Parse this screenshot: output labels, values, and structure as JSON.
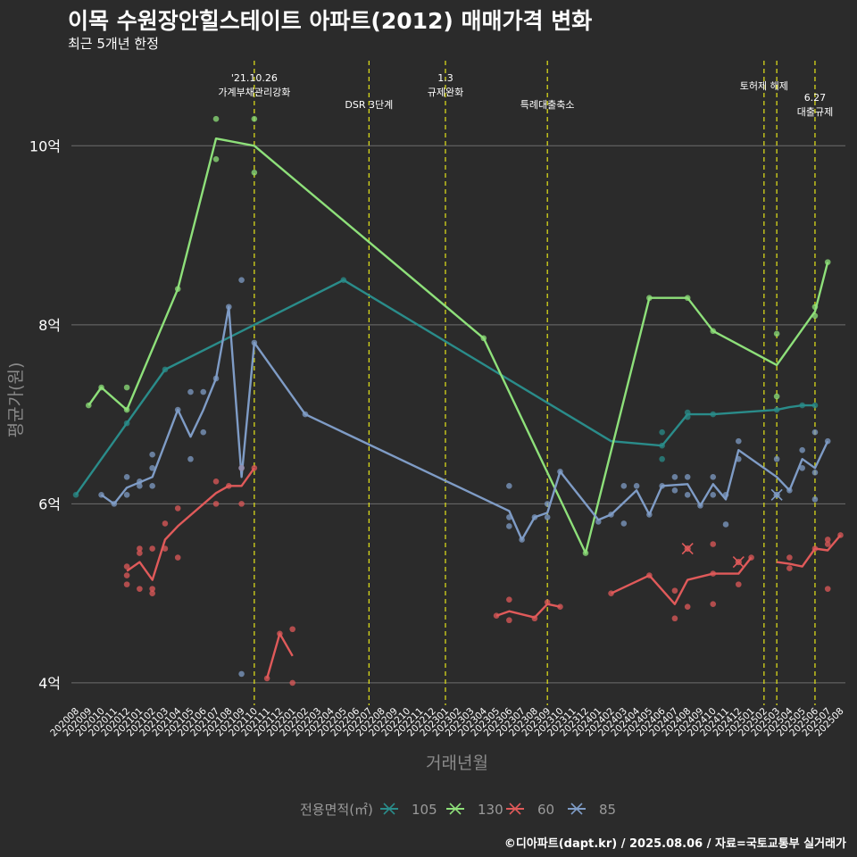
{
  "title": "이목 수원장안힐스테이트 아파트(2012) 매매가격 변화",
  "subtitle": "최근 5개년 한정",
  "footer": "©디아파트(dapt.kr) / 2025.08.06 / 자료=국토교통부 실거래가",
  "colors": {
    "background": "#2b2b2b",
    "grid": "#6e6e6e",
    "event_line": "#e6e619",
    "s105": "#2a8c8a",
    "s130": "#8ee07a",
    "s60": "#e05a5a",
    "s85": "#7f9cc6"
  },
  "chart_data": {
    "type": "line",
    "title": "이목 수원장안힐스테이트 아파트(2012) 매매가격 변화",
    "subtitle": "최근 5개년 한정",
    "xlabel": "거래년월",
    "ylabel": "평균가(원)",
    "ylim": [
      3.75,
      10.95
    ],
    "yticks": [
      {
        "value": 4,
        "label": "4억"
      },
      {
        "value": 6,
        "label": "6억"
      },
      {
        "value": 8,
        "label": "8억"
      },
      {
        "value": 10,
        "label": "10억"
      }
    ],
    "x_categories": [
      "202008",
      "202009",
      "202010",
      "202011",
      "202012",
      "202101",
      "202102",
      "202103",
      "202104",
      "202105",
      "202106",
      "202107",
      "202108",
      "202109",
      "202110",
      "202111",
      "202112",
      "202201",
      "202202",
      "202203",
      "202204",
      "202205",
      "202206",
      "202207",
      "202208",
      "202209",
      "202210",
      "202211",
      "202212",
      "202301",
      "202302",
      "202303",
      "202304",
      "202305",
      "202306",
      "202307",
      "202308",
      "202309",
      "202310",
      "202311",
      "202312",
      "202401",
      "202402",
      "202403",
      "202404",
      "202405",
      "202406",
      "202407",
      "202408",
      "202409",
      "202410",
      "202411",
      "202412",
      "202501",
      "202502",
      "202503",
      "202504",
      "202505",
      "202506",
      "202507",
      "202508"
    ],
    "grid": true,
    "legend": {
      "title": "전용면적(㎡)",
      "position": "bottom",
      "entries": [
        "105",
        "130",
        "60",
        "85"
      ]
    },
    "events": [
      {
        "x": "202110",
        "lines": [
          "'21.10.26",
          "가계부채관리강화"
        ],
        "level": 1
      },
      {
        "x": "202207",
        "lines": [
          "DSR 3단계"
        ],
        "level": 3
      },
      {
        "x": "202301",
        "lines": [
          "1.3",
          "규제완화"
        ],
        "level": 1
      },
      {
        "x": "202309",
        "lines": [
          "특례대출축소"
        ],
        "level": 3
      },
      {
        "x": "202502",
        "lines": [
          "토허제 해제"
        ],
        "level": 2
      },
      {
        "x": "202503",
        "lines": [],
        "level": 0
      },
      {
        "x": "202506",
        "lines": [
          "6.27",
          "대출규제"
        ],
        "level": 2.5
      }
    ],
    "series": [
      {
        "name": "105",
        "color": "#2a8c8a",
        "line": [
          [
            "202008",
            6.1
          ],
          [
            "202012",
            6.9
          ],
          [
            "202103",
            7.5
          ],
          [
            "202205",
            8.5
          ],
          [
            "202402",
            6.7
          ],
          [
            "202406",
            6.65
          ],
          [
            "202408",
            7.0
          ],
          [
            "202410",
            7.0
          ],
          [
            "202503",
            7.05
          ],
          [
            "202504",
            7.08
          ],
          [
            "202505",
            7.1
          ],
          [
            "202506",
            7.1
          ]
        ],
        "points": [
          [
            "202008",
            6.1
          ],
          [
            "202012",
            6.9
          ],
          [
            "202103",
            7.5
          ],
          [
            "202205",
            8.5
          ],
          [
            "202406",
            6.65
          ],
          [
            "202406",
            6.8
          ],
          [
            "202406",
            6.5
          ],
          [
            "202408",
            6.97
          ],
          [
            "202408",
            7.02
          ],
          [
            "202410",
            7.0
          ],
          [
            "202503",
            7.05
          ],
          [
            "202505",
            7.1
          ],
          [
            "202506",
            7.1
          ]
        ],
        "cancelled": []
      },
      {
        "name": "130",
        "color": "#8ee07a",
        "line": [
          [
            "202009",
            7.1
          ],
          [
            "202010",
            7.3
          ],
          [
            "202012",
            7.05
          ],
          [
            "202104",
            8.4
          ],
          [
            "202107",
            10.08
          ],
          [
            "202110",
            10.0
          ],
          [
            "202304",
            7.85
          ],
          [
            "202312",
            5.45
          ],
          [
            "202405",
            8.3
          ],
          [
            "202408",
            8.3
          ],
          [
            "202410",
            7.93
          ],
          [
            "202503",
            7.55
          ],
          [
            "202506",
            8.15
          ],
          [
            "202507",
            8.7
          ]
        ],
        "points": [
          [
            "202009",
            7.1
          ],
          [
            "202010",
            7.3
          ],
          [
            "202012",
            7.05
          ],
          [
            "202012",
            7.3
          ],
          [
            "202104",
            8.4
          ],
          [
            "202107",
            10.3
          ],
          [
            "202107",
            9.85
          ],
          [
            "202110",
            10.3
          ],
          [
            "202110",
            9.7
          ],
          [
            "202304",
            7.85
          ],
          [
            "202312",
            5.45
          ],
          [
            "202405",
            8.3
          ],
          [
            "202408",
            8.3
          ],
          [
            "202410",
            7.93
          ],
          [
            "202503",
            7.9
          ],
          [
            "202503",
            7.2
          ],
          [
            "202506",
            8.2
          ],
          [
            "202506",
            8.1
          ],
          [
            "202507",
            8.7
          ]
        ],
        "cancelled": []
      },
      {
        "name": "60",
        "color": "#e05a5a",
        "line": [
          [
            "202012",
            5.25
          ],
          [
            "202101",
            5.35
          ],
          [
            "202102",
            5.15
          ],
          [
            "202103",
            5.6
          ],
          [
            "202104",
            5.75
          ],
          [
            "202107",
            6.12
          ],
          [
            "202108",
            6.2
          ],
          [
            "202109",
            6.2
          ],
          [
            "202110",
            6.4
          ],
          null,
          [
            "202111",
            4.05
          ],
          [
            "202112",
            4.55
          ],
          [
            "202201",
            4.3
          ],
          null,
          [
            "202305",
            4.75
          ],
          [
            "202306",
            4.8
          ],
          [
            "202308",
            4.73
          ],
          [
            "202309",
            4.88
          ],
          [
            "202310",
            4.85
          ],
          null,
          [
            "202402",
            5.0
          ],
          [
            "202405",
            5.2
          ],
          [
            "202407",
            4.88
          ],
          [
            "202408",
            5.15
          ],
          [
            "202410",
            5.22
          ],
          [
            "202412",
            5.22
          ],
          [
            "202501",
            5.4
          ],
          null,
          [
            "202503",
            5.35
          ],
          [
            "202504",
            5.33
          ],
          [
            "202505",
            5.3
          ],
          [
            "202506",
            5.5
          ],
          [
            "202507",
            5.48
          ],
          [
            "202508",
            5.65
          ]
        ],
        "points": [
          [
            "202012",
            5.3
          ],
          [
            "202012",
            5.2
          ],
          [
            "202012",
            5.1
          ],
          [
            "202101",
            5.45
          ],
          [
            "202101",
            5.5
          ],
          [
            "202101",
            5.05
          ],
          [
            "202102",
            5.5
          ],
          [
            "202102",
            5.05
          ],
          [
            "202102",
            5.0
          ],
          [
            "202103",
            5.5
          ],
          [
            "202103",
            5.78
          ],
          [
            "202104",
            5.95
          ],
          [
            "202104",
            5.4
          ],
          [
            "202107",
            6.25
          ],
          [
            "202107",
            6.0
          ],
          [
            "202108",
            6.2
          ],
          [
            "202109",
            6.0
          ],
          [
            "202109",
            6.4
          ],
          [
            "202110",
            6.4
          ],
          [
            "202111",
            4.05
          ],
          [
            "202112",
            4.55
          ],
          [
            "202201",
            4.6
          ],
          [
            "202201",
            4.0
          ],
          [
            "202305",
            4.75
          ],
          [
            "202306",
            4.93
          ],
          [
            "202306",
            4.7
          ],
          [
            "202308",
            4.72
          ],
          [
            "202309",
            4.9
          ],
          [
            "202310",
            4.85
          ],
          [
            "202402",
            5.0
          ],
          [
            "202405",
            5.2
          ],
          [
            "202407",
            5.03
          ],
          [
            "202407",
            4.72
          ],
          [
            "202408",
            4.85
          ],
          [
            "202410",
            5.55
          ],
          [
            "202410",
            5.22
          ],
          [
            "202410",
            4.88
          ],
          [
            "202412",
            5.1
          ],
          [
            "202501",
            5.4
          ],
          [
            "202504",
            5.28
          ],
          [
            "202504",
            5.4
          ],
          [
            "202506",
            5.5
          ],
          [
            "202507",
            5.6
          ],
          [
            "202507",
            5.55
          ],
          [
            "202507",
            5.05
          ],
          [
            "202508",
            5.65
          ]
        ],
        "cancelled": [
          [
            "202408",
            5.5
          ],
          [
            "202412",
            5.35
          ]
        ]
      },
      {
        "name": "85",
        "color": "#7f9cc6",
        "line": [
          [
            "202010",
            6.1
          ],
          [
            "202011",
            6.0
          ],
          [
            "202012",
            6.18
          ],
          [
            "202102",
            6.3
          ],
          [
            "202104",
            7.05
          ],
          [
            "202105",
            6.75
          ],
          [
            "202106",
            7.05
          ],
          [
            "202107",
            7.4
          ],
          [
            "202108",
            8.2
          ],
          [
            "202109",
            6.3
          ],
          [
            "202110",
            7.8
          ],
          [
            "202202",
            7.0
          ],
          [
            "202306",
            5.92
          ],
          [
            "202307",
            5.6
          ],
          [
            "202308",
            5.85
          ],
          [
            "202309",
            5.9
          ],
          [
            "202310",
            6.36
          ],
          [
            "202401",
            5.82
          ],
          [
            "202402",
            5.88
          ],
          [
            "202404",
            6.15
          ],
          [
            "202405",
            5.88
          ],
          [
            "202406",
            6.2
          ],
          [
            "202408",
            6.22
          ],
          [
            "202409",
            5.98
          ],
          [
            "202410",
            6.22
          ],
          [
            "202411",
            6.05
          ],
          [
            "202412",
            6.6
          ],
          [
            "202503",
            6.3
          ],
          [
            "202504",
            6.15
          ],
          [
            "202505",
            6.5
          ],
          [
            "202506",
            6.4
          ],
          [
            "202507",
            6.7
          ]
        ],
        "points": [
          [
            "202010",
            6.1
          ],
          [
            "202011",
            6.0
          ],
          [
            "202012",
            6.3
          ],
          [
            "202012",
            6.1
          ],
          [
            "202101",
            6.2
          ],
          [
            "202101",
            6.25
          ],
          [
            "202102",
            6.55
          ],
          [
            "202102",
            6.2
          ],
          [
            "202102",
            6.4
          ],
          [
            "202104",
            7.05
          ],
          [
            "202105",
            7.25
          ],
          [
            "202105",
            6.5
          ],
          [
            "202106",
            7.25
          ],
          [
            "202106",
            6.8
          ],
          [
            "202107",
            7.4
          ],
          [
            "202108",
            8.2
          ],
          [
            "202109",
            8.5
          ],
          [
            "202109",
            6.4
          ],
          [
            "202109",
            4.1
          ],
          [
            "202110",
            7.8
          ],
          [
            "202202",
            7.0
          ],
          [
            "202306",
            6.2
          ],
          [
            "202306",
            5.85
          ],
          [
            "202306",
            5.75
          ],
          [
            "202307",
            5.6
          ],
          [
            "202308",
            5.85
          ],
          [
            "202309",
            6.0
          ],
          [
            "202309",
            5.85
          ],
          [
            "202310",
            6.36
          ],
          [
            "202401",
            5.8
          ],
          [
            "202402",
            5.88
          ],
          [
            "202403",
            6.2
          ],
          [
            "202403",
            5.78
          ],
          [
            "202404",
            6.2
          ],
          [
            "202405",
            5.88
          ],
          [
            "202406",
            6.2
          ],
          [
            "202407",
            6.3
          ],
          [
            "202407",
            6.15
          ],
          [
            "202408",
            6.3
          ],
          [
            "202408",
            6.1
          ],
          [
            "202409",
            5.98
          ],
          [
            "202410",
            6.3
          ],
          [
            "202410",
            6.1
          ],
          [
            "202411",
            5.77
          ],
          [
            "202411",
            6.1
          ],
          [
            "202412",
            6.7
          ],
          [
            "202412",
            6.5
          ],
          [
            "202503",
            6.5
          ],
          [
            "202504",
            6.15
          ],
          [
            "202505",
            6.6
          ],
          [
            "202505",
            6.4
          ],
          [
            "202506",
            6.8
          ],
          [
            "202506",
            6.35
          ],
          [
            "202506",
            6.05
          ],
          [
            "202507",
            6.7
          ]
        ],
        "cancelled": [
          [
            "202503",
            6.1
          ]
        ]
      }
    ]
  }
}
